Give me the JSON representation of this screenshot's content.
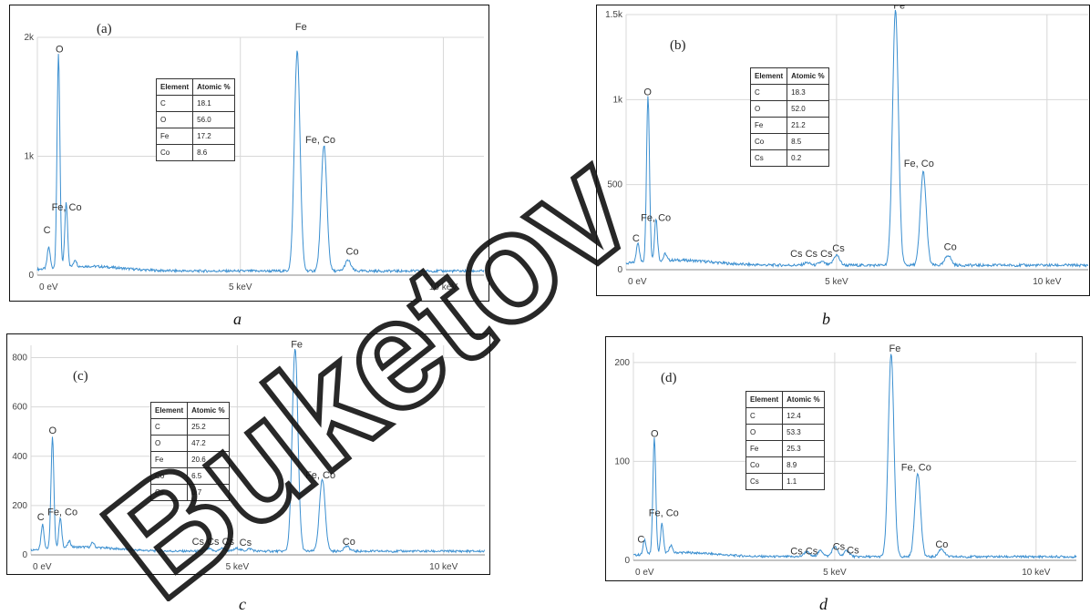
{
  "watermark": "Buketov",
  "chart_data": [
    {
      "type": "line",
      "tag": "(a)",
      "caption": "a",
      "xlim": [
        0,
        11
      ],
      "ylim": [
        0,
        2000
      ],
      "yticks": [
        {
          "v": 0,
          "t": "0"
        },
        {
          "v": 1000,
          "t": "1k"
        },
        {
          "v": 2000,
          "t": "2k"
        }
      ],
      "xticks": [
        {
          "v": 0,
          "t": "0 eV"
        },
        {
          "v": 5,
          "t": "5 keV"
        },
        {
          "v": 10,
          "t": "10 keV"
        }
      ],
      "peaks": [
        [
          0.28,
          180
        ],
        [
          0.52,
          1800
        ],
        [
          0.71,
          540
        ],
        [
          0.93,
          60
        ],
        [
          6.4,
          1850
        ],
        [
          7.06,
          1060
        ],
        [
          7.65,
          90
        ]
      ],
      "peak_labels": [
        {
          "text": "C",
          "x": 0.15,
          "y": 330
        },
        {
          "text": "O",
          "x": 0.45,
          "y": 1850
        },
        {
          "text": "Fe, Co",
          "x": 0.35,
          "y": 520
        },
        {
          "text": "Fe",
          "x": 6.35,
          "y": 2040
        },
        {
          "text": "Fe, Co",
          "x": 6.6,
          "y": 1090
        },
        {
          "text": "Co",
          "x": 7.6,
          "y": 150
        }
      ],
      "table": {
        "headers": [
          "Element",
          "Atomic %"
        ],
        "rows": [
          [
            "C",
            "18.1"
          ],
          [
            "O",
            "56.0"
          ],
          [
            "Fe",
            "17.2"
          ],
          [
            "Co",
            "8.6"
          ]
        ]
      }
    },
    {
      "type": "line",
      "tag": "(b)",
      "caption": "b",
      "xlim": [
        0,
        11
      ],
      "ylim": [
        0,
        1500
      ],
      "yticks": [
        {
          "v": 0,
          "t": "0"
        },
        {
          "v": 500,
          "t": "500"
        },
        {
          "v": 1000,
          "t": "1k"
        },
        {
          "v": 1500,
          "t": "1.5k"
        }
      ],
      "xticks": [
        {
          "v": 0,
          "t": "0 eV"
        },
        {
          "v": 5,
          "t": "5 keV"
        },
        {
          "v": 10,
          "t": "10 keV"
        }
      ],
      "peaks": [
        [
          0.28,
          120
        ],
        [
          0.52,
          980
        ],
        [
          0.71,
          250
        ],
        [
          0.93,
          40
        ],
        [
          4.3,
          15
        ],
        [
          4.65,
          20
        ],
        [
          5.0,
          60
        ],
        [
          6.4,
          1500
        ],
        [
          7.06,
          550
        ],
        [
          7.65,
          60
        ]
      ],
      "peak_labels": [
        {
          "text": "C",
          "x": 0.15,
          "y": 150
        },
        {
          "text": "O",
          "x": 0.42,
          "y": 1010
        },
        {
          "text": "Fe, Co",
          "x": 0.35,
          "y": 270
        },
        {
          "text": "Cs Cs Cs",
          "x": 3.9,
          "y": 60
        },
        {
          "text": "Cs",
          "x": 4.9,
          "y": 90
        },
        {
          "text": "Fe",
          "x": 6.35,
          "y": 1520
        },
        {
          "text": "Fe, Co",
          "x": 6.6,
          "y": 590
        },
        {
          "text": "Co",
          "x": 7.55,
          "y": 100
        }
      ],
      "table": {
        "headers": [
          "Element",
          "Atomic %"
        ],
        "rows": [
          [
            "C",
            "18.3"
          ],
          [
            "O",
            "52.0"
          ],
          [
            "Fe",
            "21.2"
          ],
          [
            "Co",
            "8.5"
          ],
          [
            "Cs",
            "0.2"
          ]
        ]
      }
    },
    {
      "type": "line",
      "tag": "(c)",
      "caption": "c",
      "xlim": [
        0,
        11
      ],
      "ylim": [
        0,
        850
      ],
      "yticks": [
        {
          "v": 0,
          "t": "0"
        },
        {
          "v": 200,
          "t": "200"
        },
        {
          "v": 400,
          "t": "400"
        },
        {
          "v": 600,
          "t": "600"
        },
        {
          "v": 800,
          "t": "800"
        }
      ],
      "xticks": [
        {
          "v": 0,
          "t": "0 eV"
        },
        {
          "v": 5,
          "t": "5 keV"
        },
        {
          "v": 10,
          "t": "10 keV"
        }
      ],
      "peaks": [
        [
          0.28,
          100
        ],
        [
          0.52,
          450
        ],
        [
          0.71,
          120
        ],
        [
          0.93,
          25
        ],
        [
          1.5,
          20
        ],
        [
          4.3,
          10
        ],
        [
          4.65,
          12
        ],
        [
          5.0,
          12
        ],
        [
          5.3,
          10
        ],
        [
          6.4,
          820
        ],
        [
          7.06,
          290
        ],
        [
          7.65,
          20
        ]
      ],
      "peak_labels": [
        {
          "text": "C",
          "x": 0.15,
          "y": 130
        },
        {
          "text": "O",
          "x": 0.43,
          "y": 480
        },
        {
          "text": "Fe, Co",
          "x": 0.4,
          "y": 150
        },
        {
          "text": "Cs Cs Cs",
          "x": 3.9,
          "y": 30
        },
        {
          "text": "Cs",
          "x": 5.05,
          "y": 25
        },
        {
          "text": "Fe",
          "x": 6.3,
          "y": 830
        },
        {
          "text": "Fe, Co",
          "x": 6.65,
          "y": 300
        },
        {
          "text": "Co",
          "x": 7.55,
          "y": 30
        }
      ],
      "table": {
        "headers": [
          "Element",
          "Atomic %"
        ],
        "rows": [
          [
            "C",
            "25.2"
          ],
          [
            "O",
            "47.2"
          ],
          [
            "Fe",
            "20.6"
          ],
          [
            "Co",
            "6.5"
          ],
          [
            "Cs",
            "0.7"
          ]
        ]
      }
    },
    {
      "type": "line",
      "tag": "(d)",
      "caption": "d",
      "xlim": [
        0,
        11
      ],
      "ylim": [
        0,
        210
      ],
      "yticks": [
        {
          "v": 0,
          "t": "0"
        },
        {
          "v": 100,
          "t": "100"
        },
        {
          "v": 200,
          "t": "200"
        }
      ],
      "xticks": [
        {
          "v": 0,
          "t": "0 eV"
        },
        {
          "v": 5,
          "t": "5 keV"
        },
        {
          "v": 10,
          "t": "10 keV"
        }
      ],
      "peaks": [
        [
          0.28,
          15
        ],
        [
          0.52,
          118
        ],
        [
          0.71,
          30
        ],
        [
          0.93,
          8
        ],
        [
          4.3,
          5
        ],
        [
          4.65,
          6
        ],
        [
          5.0,
          10
        ],
        [
          5.3,
          6
        ],
        [
          6.4,
          205
        ],
        [
          7.06,
          85
        ],
        [
          7.65,
          8
        ]
      ],
      "peak_labels": [
        {
          "text": "C",
          "x": 0.1,
          "y": 15
        },
        {
          "text": "O",
          "x": 0.43,
          "y": 122
        },
        {
          "text": "Fe, Co",
          "x": 0.38,
          "y": 42
        },
        {
          "text": "Cs Cs",
          "x": 3.9,
          "y": 3
        },
        {
          "text": "Cs",
          "x": 4.95,
          "y": 8
        },
        {
          "text": "Cs",
          "x": 5.3,
          "y": 4
        },
        {
          "text": "Fe",
          "x": 6.35,
          "y": 208
        },
        {
          "text": "Fe, Co",
          "x": 6.65,
          "y": 88
        },
        {
          "text": "Co",
          "x": 7.5,
          "y": 10
        }
      ],
      "table": {
        "headers": [
          "Element",
          "Atomic %"
        ],
        "rows": [
          [
            "C",
            "12.4"
          ],
          [
            "O",
            "53.3"
          ],
          [
            "Fe",
            "25.3"
          ],
          [
            "Co",
            "8.9"
          ],
          [
            "Cs",
            "1.1"
          ]
        ]
      }
    }
  ]
}
